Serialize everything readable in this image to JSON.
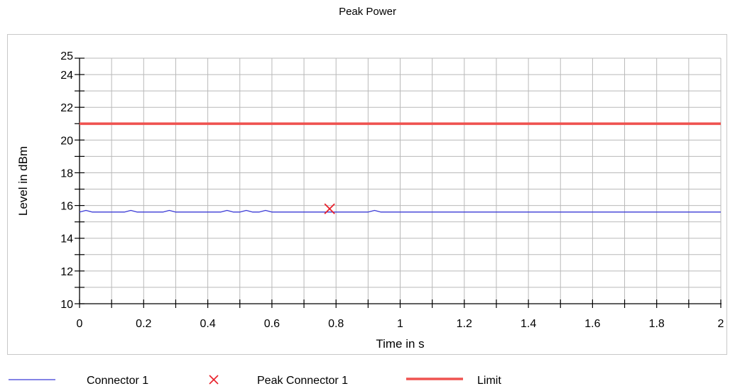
{
  "chart_data": {
    "type": "line",
    "title": "Peak Power",
    "xlabel": "Time in s",
    "ylabel": "Level in dBm",
    "xlim": [
      0,
      2
    ],
    "ylim": [
      10,
      25
    ],
    "x_ticks": [
      0,
      0.2,
      0.4,
      0.6,
      0.8,
      1,
      1.2,
      1.4,
      1.6,
      1.8,
      2
    ],
    "y_ticks": [
      10,
      12,
      14,
      16,
      18,
      20,
      22,
      24,
      25
    ],
    "grid": true,
    "legend_position": "bottom",
    "series": [
      {
        "name": "Connector 1",
        "type": "line",
        "color": "#3b3bd6",
        "x": [
          0,
          0.02,
          0.04,
          0.06,
          0.08,
          0.1,
          0.12,
          0.14,
          0.16,
          0.18,
          0.2,
          0.22,
          0.24,
          0.26,
          0.28,
          0.3,
          0.32,
          0.34,
          0.36,
          0.38,
          0.4,
          0.42,
          0.44,
          0.46,
          0.48,
          0.5,
          0.52,
          0.54,
          0.56,
          0.58,
          0.6,
          0.62,
          0.64,
          0.66,
          0.68,
          0.7,
          0.72,
          0.74,
          0.76,
          0.78,
          0.8,
          0.82,
          0.84,
          0.86,
          0.88,
          0.9,
          0.92,
          0.94,
          0.96,
          0.98,
          1.0,
          1.2,
          1.4,
          1.6,
          1.8,
          2.0
        ],
        "y": [
          15.6,
          15.7,
          15.6,
          15.6,
          15.6,
          15.6,
          15.6,
          15.6,
          15.7,
          15.6,
          15.6,
          15.6,
          15.6,
          15.6,
          15.7,
          15.6,
          15.6,
          15.6,
          15.6,
          15.6,
          15.6,
          15.6,
          15.6,
          15.7,
          15.6,
          15.6,
          15.7,
          15.6,
          15.6,
          15.7,
          15.6,
          15.6,
          15.6,
          15.6,
          15.6,
          15.6,
          15.6,
          15.6,
          15.6,
          15.6,
          15.6,
          15.6,
          15.6,
          15.6,
          15.6,
          15.6,
          15.7,
          15.6,
          15.6,
          15.6,
          15.6,
          15.6,
          15.6,
          15.6,
          15.6,
          15.6
        ]
      },
      {
        "name": "Peak Connector 1",
        "type": "marker",
        "color": "#e8202a",
        "x": [
          0.78
        ],
        "y": [
          15.8
        ]
      },
      {
        "name": "Limit",
        "type": "line",
        "color": "#ef5350",
        "x": [
          0,
          2
        ],
        "y": [
          21,
          21
        ]
      }
    ]
  },
  "legend": {
    "items": [
      {
        "label": "Connector 1"
      },
      {
        "label": "Peak Connector 1"
      },
      {
        "label": "Limit"
      }
    ]
  }
}
